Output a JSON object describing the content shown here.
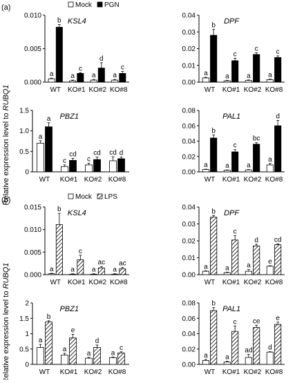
{
  "figure": {
    "ylabel_prefix": "Relative expression level to ",
    "ylabel_gene": "RUBQ1",
    "hatch_color": "#000000",
    "fill_color": "#000000",
    "mock_color": "#ffffff"
  },
  "chart_data": [
    {
      "panel_label": "(a)",
      "type": "bar",
      "gene": "KSL4",
      "categories": [
        "WT",
        "KO#1",
        "KO#2",
        "KO#8"
      ],
      "ylim": [
        0,
        0.01
      ],
      "ticks": [
        "0.000",
        "0.005",
        "0.010"
      ],
      "legend": {
        "position": "top-right",
        "mock": "Mock",
        "treatment": "PGN"
      },
      "series": [
        {
          "name": "Mock",
          "values": [
            0.0005,
            0.0002,
            0.0003,
            0.0003
          ],
          "err": [
            0.0001,
            0.0001,
            0.0001,
            0.0001
          ],
          "letters": [
            "a",
            "a",
            "a",
            "a"
          ]
        },
        {
          "name": "PGN",
          "values": [
            0.0082,
            0.0013,
            0.0021,
            0.0013
          ],
          "err": [
            0.0004,
            0.0001,
            0.0008,
            0.0003
          ],
          "letters": [
            "b",
            "c",
            "d",
            "c"
          ]
        }
      ]
    },
    {
      "panel_label": "",
      "type": "bar",
      "gene": "DPF",
      "categories": [
        "WT",
        "KO#1",
        "KO#2",
        "KO#8"
      ],
      "ylim": [
        0,
        0.04
      ],
      "ticks": [
        "0.00",
        "0.01",
        "0.02",
        "0.03",
        "0.04"
      ],
      "series": [
        {
          "name": "Mock",
          "values": [
            0.0025,
            0.0008,
            0.001,
            0.0015
          ],
          "err": [
            0.0004,
            0.0003,
            0.0003,
            0.0003
          ],
          "letters": [
            "a",
            "a",
            "a",
            "a"
          ]
        },
        {
          "name": "PGN",
          "values": [
            0.028,
            0.0128,
            0.0165,
            0.0147
          ],
          "err": [
            0.0035,
            0.0015,
            0.001,
            0.001
          ],
          "letters": [
            "b",
            "c",
            "c",
            "c"
          ]
        }
      ]
    },
    {
      "panel_label": "",
      "type": "bar",
      "gene": "PBZ1",
      "categories": [
        "WT",
        "KO#1",
        "KO#2",
        "KO#8"
      ],
      "ylim": [
        0,
        1.5
      ],
      "ticks": [
        "0",
        "0.5",
        "1.0",
        "1.5"
      ],
      "series": [
        {
          "name": "Mock",
          "values": [
            0.7,
            0.13,
            0.17,
            0.27
          ],
          "err": [
            0.06,
            0.04,
            0.04,
            0.1
          ],
          "letters": [
            "a",
            "c",
            "c",
            "cd"
          ]
        },
        {
          "name": "PGN",
          "values": [
            1.1,
            0.28,
            0.3,
            0.32
          ],
          "err": [
            0.1,
            0.05,
            0.06,
            0.04
          ],
          "letters": [
            "a",
            "cd",
            "cd",
            "d"
          ]
        }
      ]
    },
    {
      "panel_label": "",
      "type": "bar",
      "gene": "PAL1",
      "categories": [
        "WT",
        "KO#1",
        "KO#2",
        "KO#8"
      ],
      "ylim": [
        0,
        0.08
      ],
      "ticks": [
        "0.00",
        "0.02",
        "0.04",
        "0.06",
        "0.08"
      ],
      "series": [
        {
          "name": "Mock",
          "values": [
            0.003,
            0.002,
            0.0025,
            0.009
          ],
          "err": [
            0.0005,
            0.0005,
            0.0005,
            0.002
          ],
          "letters": [
            "a",
            "a",
            "a",
            "a"
          ]
        },
        {
          "name": "PGN",
          "values": [
            0.044,
            0.026,
            0.036,
            0.06
          ],
          "err": [
            0.004,
            0.003,
            0.002,
            0.007
          ],
          "letters": [
            "b",
            "c",
            "bc",
            "d"
          ]
        }
      ]
    },
    {
      "panel_label": "(b)",
      "type": "bar",
      "gene": "KSL4",
      "categories": [
        "WT",
        "KO#1",
        "KO#2",
        "KO#8"
      ],
      "ylim": [
        0,
        0.015
      ],
      "ticks": [
        "0.000",
        "0.005",
        "0.010",
        "0.015"
      ],
      "legend": {
        "position": "top-right",
        "mock": "Mock",
        "treatment": "LPS"
      },
      "series": [
        {
          "name": "Mock",
          "values": [
            0.0002,
            0.0001,
            0.0001,
            0.0001
          ],
          "err": [
            0.0001,
            0.0001,
            0.0001,
            0.0001
          ],
          "letters": [
            "a",
            "a",
            "a",
            "a"
          ]
        },
        {
          "name": "LPS",
          "values": [
            0.0111,
            0.0033,
            0.0015,
            0.0013
          ],
          "err": [
            0.0025,
            0.001,
            0.0003,
            0.0003
          ],
          "letters": [
            "b",
            "c",
            "ac",
            "ac"
          ]
        }
      ]
    },
    {
      "panel_label": "",
      "type": "bar",
      "gene": "DPF",
      "categories": [
        "WT",
        "KO#1",
        "KO#2",
        "KO#8"
      ],
      "ylim": [
        0,
        0.04
      ],
      "ticks": [
        "0.00",
        "0.01",
        "0.02",
        "0.03",
        "0.04"
      ],
      "series": [
        {
          "name": "Mock",
          "values": [
            0.002,
            0.0012,
            0.002,
            0.005
          ],
          "err": [
            0.0003,
            0.0003,
            0.001,
            0.0003
          ],
          "letters": [
            "a",
            "a",
            "a",
            "e"
          ]
        },
        {
          "name": "LPS",
          "values": [
            0.034,
            0.0205,
            0.017,
            0.0177
          ],
          "err": [
            0.001,
            0.0025,
            0.001,
            0.0005
          ],
          "letters": [
            "b",
            "c",
            "d",
            "cd"
          ]
        }
      ]
    },
    {
      "panel_label": "",
      "type": "bar",
      "gene": "PBZ1",
      "categories": [
        "WT",
        "KO#1",
        "KO#2",
        "KO#8"
      ],
      "ylim": [
        0,
        2.0
      ],
      "ticks": [
        "0",
        "0.5",
        "1",
        "1.5",
        "2"
      ],
      "series": [
        {
          "name": "Mock",
          "values": [
            0.55,
            0.3,
            0.2,
            0.22
          ],
          "err": [
            0.1,
            0.06,
            0.03,
            0.02
          ],
          "letters": [
            "a",
            "a",
            "a",
            "a"
          ]
        },
        {
          "name": "LPS",
          "values": [
            1.38,
            0.86,
            0.55,
            0.37
          ],
          "err": [
            0.04,
            0.12,
            0.08,
            0.04
          ],
          "letters": [
            "b",
            "e",
            "d",
            "c"
          ]
        }
      ]
    },
    {
      "panel_label": "",
      "type": "bar",
      "gene": "PAL1",
      "categories": [
        "WT",
        "KO#1",
        "KO#2",
        "KO#8"
      ],
      "ylim": [
        0,
        0.08
      ],
      "ticks": [
        "0.00",
        "0.02",
        "0.04",
        "0.06",
        "0.08"
      ],
      "series": [
        {
          "name": "Mock",
          "values": [
            0.005,
            0.003,
            0.009,
            0.016
          ],
          "err": [
            0.0015,
            0.001,
            0.004,
            0.0005
          ],
          "letters": [
            "a",
            "a",
            "ad",
            "d"
          ]
        },
        {
          "name": "LPS",
          "values": [
            0.07,
            0.043,
            0.048,
            0.052
          ],
          "err": [
            0.004,
            0.007,
            0.003,
            0.003
          ],
          "letters": [
            "b",
            "c",
            "ce",
            "e"
          ]
        }
      ]
    }
  ]
}
